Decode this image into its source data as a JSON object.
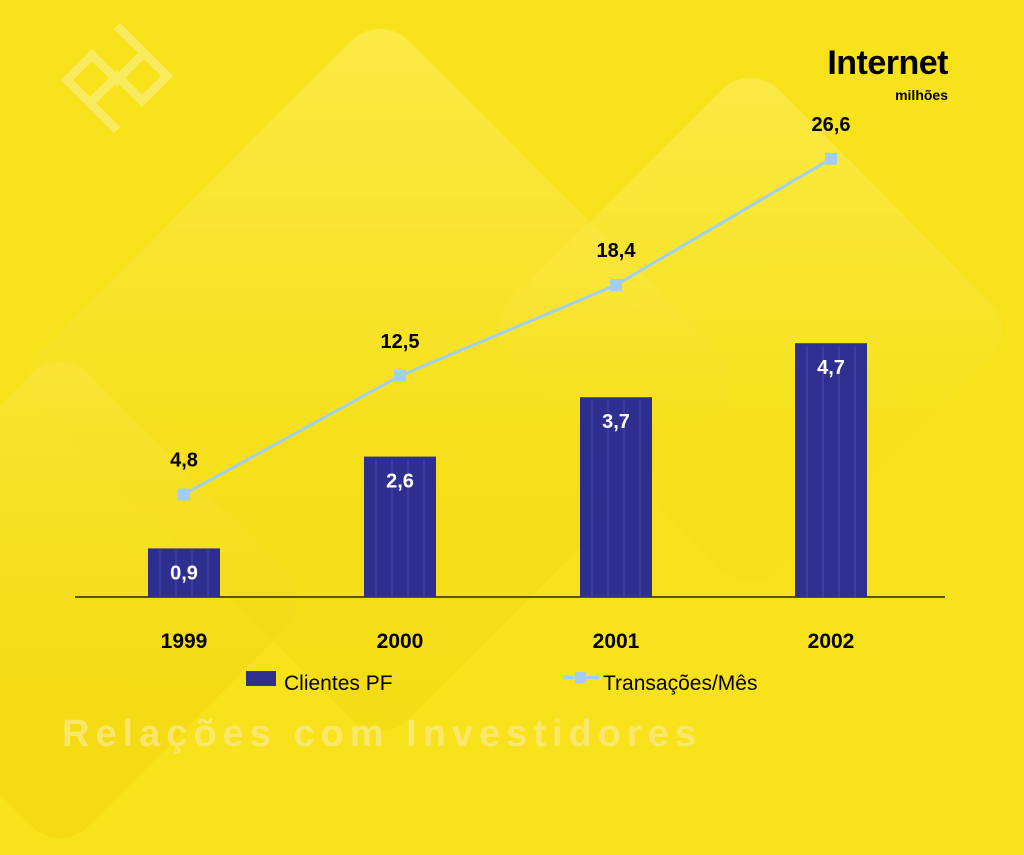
{
  "header": {
    "title": "Internet",
    "subtitle": "milhões"
  },
  "footer": {
    "text": "Relações com Investidores"
  },
  "colors": {
    "background": "#f7e21c",
    "bar": "#2f2f8f",
    "line": "#9fd0f2"
  },
  "logo": {
    "icon": "banco-do-brasil-logo-icon"
  },
  "chart_data": {
    "type": "bar",
    "categories": [
      "1999",
      "2000",
      "2001",
      "2002"
    ],
    "series": [
      {
        "name": "Clientes PF",
        "type": "bar",
        "values": [
          0.9,
          2.6,
          3.7,
          4.7
        ],
        "labels": [
          "0,9",
          "2,6",
          "3,7",
          "4,7"
        ]
      },
      {
        "name": "Transações/Mês",
        "type": "line",
        "values": [
          4.8,
          12.5,
          18.4,
          26.6
        ],
        "labels": [
          "4,8",
          "12,5",
          "18,4",
          "26,6"
        ]
      }
    ],
    "title": "Internet",
    "subtitle": "milhões",
    "legend_position": "bottom",
    "grid": false
  }
}
